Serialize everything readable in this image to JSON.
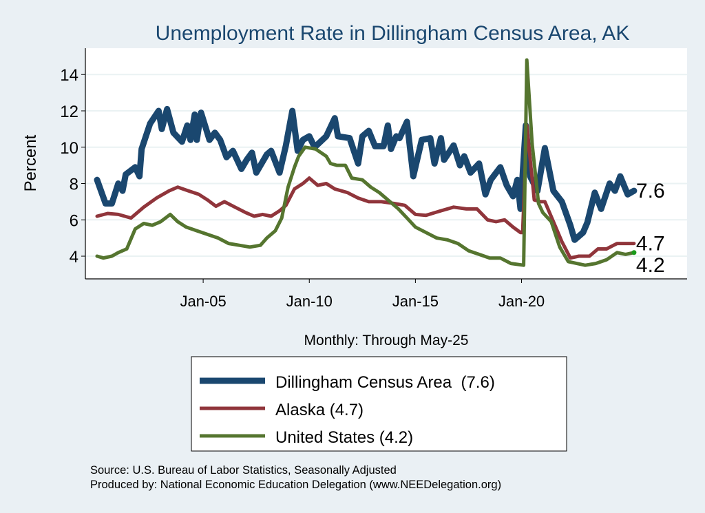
{
  "chart_data": {
    "type": "line",
    "title": "Unemployment Rate in Dillingham Census Area, AK",
    "xlabel": "Monthly: Through May-25",
    "ylabel": "Percent",
    "ylim": [
      2.75,
      15.45
    ],
    "xlim": [
      1999.45,
      2027.8
    ],
    "yticks": [
      4,
      6,
      8,
      10,
      12,
      14
    ],
    "ytick_labels": [
      "4",
      "6",
      "8",
      "10",
      "12",
      "14"
    ],
    "xticks": [
      2005,
      2010,
      2015,
      2020
    ],
    "xtick_labels": [
      "Jan-05",
      "Jan-10",
      "Jan-15",
      "Jan-20"
    ],
    "grid": true,
    "legend_position": "bottom",
    "series": [
      {
        "name": "Dillingham Census Area  (7.6)",
        "color": "#1a476f",
        "end_label": "7.6",
        "points": [
          [
            2000.0,
            8.2
          ],
          [
            2000.4,
            6.9
          ],
          [
            2000.7,
            6.9
          ],
          [
            2001.0,
            8.0
          ],
          [
            2001.2,
            7.6
          ],
          [
            2001.35,
            8.5
          ],
          [
            2001.8,
            8.9
          ],
          [
            2002.0,
            8.4
          ],
          [
            2002.1,
            9.9
          ],
          [
            2002.5,
            11.3
          ],
          [
            2002.9,
            12.0
          ],
          [
            2003.05,
            11.0
          ],
          [
            2003.3,
            12.1
          ],
          [
            2003.6,
            10.8
          ],
          [
            2004.0,
            10.3
          ],
          [
            2004.25,
            11.2
          ],
          [
            2004.4,
            10.4
          ],
          [
            2004.6,
            11.8
          ],
          [
            2004.7,
            10.4
          ],
          [
            2004.9,
            11.9
          ],
          [
            2005.3,
            10.4
          ],
          [
            2005.55,
            10.8
          ],
          [
            2005.8,
            10.4
          ],
          [
            2006.1,
            9.45
          ],
          [
            2006.4,
            9.8
          ],
          [
            2006.8,
            8.8
          ],
          [
            2007.05,
            9.3
          ],
          [
            2007.3,
            9.7
          ],
          [
            2007.5,
            8.6
          ],
          [
            2008.0,
            9.6
          ],
          [
            2008.2,
            9.8
          ],
          [
            2008.6,
            8.6
          ],
          [
            2008.9,
            10.1
          ],
          [
            2009.2,
            12.0
          ],
          [
            2009.45,
            9.8
          ],
          [
            2009.7,
            10.4
          ],
          [
            2010.0,
            10.6
          ],
          [
            2010.25,
            10.0
          ],
          [
            2010.8,
            10.6
          ],
          [
            2011.2,
            11.6
          ],
          [
            2011.35,
            10.6
          ],
          [
            2011.9,
            10.5
          ],
          [
            2012.3,
            9.1
          ],
          [
            2012.5,
            10.6
          ],
          [
            2012.8,
            10.9
          ],
          [
            2013.1,
            10.05
          ],
          [
            2013.5,
            10.05
          ],
          [
            2013.7,
            11.2
          ],
          [
            2013.85,
            9.9
          ],
          [
            2014.1,
            10.6
          ],
          [
            2014.25,
            10.5
          ],
          [
            2014.6,
            11.4
          ],
          [
            2014.9,
            8.4
          ],
          [
            2015.3,
            10.4
          ],
          [
            2015.7,
            10.5
          ],
          [
            2015.9,
            9.1
          ],
          [
            2016.2,
            10.5
          ],
          [
            2016.35,
            9.3
          ],
          [
            2016.8,
            10.1
          ],
          [
            2017.1,
            9.0
          ],
          [
            2017.3,
            9.5
          ],
          [
            2017.6,
            8.6
          ],
          [
            2018.0,
            9.1
          ],
          [
            2018.3,
            7.4
          ],
          [
            2018.55,
            8.2
          ],
          [
            2019.0,
            8.9
          ],
          [
            2019.3,
            7.9
          ],
          [
            2019.6,
            7.3
          ],
          [
            2019.8,
            8.2
          ],
          [
            2019.95,
            6.6
          ],
          [
            2020.2,
            11.2
          ],
          [
            2020.4,
            8.4
          ],
          [
            2020.75,
            7.6
          ],
          [
            2021.1,
            9.95
          ],
          [
            2021.5,
            7.6
          ],
          [
            2021.9,
            7.0
          ],
          [
            2022.3,
            5.7
          ],
          [
            2022.5,
            4.9
          ],
          [
            2022.9,
            5.3
          ],
          [
            2023.1,
            5.85
          ],
          [
            2023.45,
            7.5
          ],
          [
            2023.75,
            6.6
          ],
          [
            2024.15,
            8.0
          ],
          [
            2024.4,
            7.6
          ],
          [
            2024.65,
            8.4
          ],
          [
            2025.0,
            7.4
          ],
          [
            2025.3,
            7.6
          ]
        ]
      },
      {
        "name": "Alaska (4.7)",
        "color": "#90353b",
        "end_label": "4.7",
        "points": [
          [
            2000.0,
            6.2
          ],
          [
            2000.5,
            6.35
          ],
          [
            2001.0,
            6.3
          ],
          [
            2001.6,
            6.1
          ],
          [
            2002.2,
            6.7
          ],
          [
            2002.8,
            7.2
          ],
          [
            2003.4,
            7.6
          ],
          [
            2003.8,
            7.8
          ],
          [
            2004.3,
            7.6
          ],
          [
            2004.8,
            7.4
          ],
          [
            2005.2,
            7.1
          ],
          [
            2005.6,
            6.75
          ],
          [
            2006.0,
            7.0
          ],
          [
            2006.5,
            6.7
          ],
          [
            2007.0,
            6.4
          ],
          [
            2007.4,
            6.2
          ],
          [
            2007.8,
            6.3
          ],
          [
            2008.2,
            6.2
          ],
          [
            2008.6,
            6.5
          ],
          [
            2008.9,
            6.8
          ],
          [
            2009.3,
            7.7
          ],
          [
            2009.7,
            8.0
          ],
          [
            2010.0,
            8.3
          ],
          [
            2010.4,
            7.9
          ],
          [
            2010.8,
            8.0
          ],
          [
            2011.2,
            7.7
          ],
          [
            2011.8,
            7.5
          ],
          [
            2012.3,
            7.2
          ],
          [
            2012.8,
            7.0
          ],
          [
            2013.4,
            7.0
          ],
          [
            2014.0,
            6.9
          ],
          [
            2014.5,
            6.8
          ],
          [
            2015.0,
            6.3
          ],
          [
            2015.5,
            6.25
          ],
          [
            2016.2,
            6.5
          ],
          [
            2016.8,
            6.7
          ],
          [
            2017.4,
            6.6
          ],
          [
            2017.9,
            6.6
          ],
          [
            2018.4,
            6.0
          ],
          [
            2018.8,
            5.9
          ],
          [
            2019.2,
            6.0
          ],
          [
            2019.6,
            5.6
          ],
          [
            2019.95,
            5.3
          ],
          [
            2020.05,
            5.3
          ],
          [
            2020.25,
            11.2
          ],
          [
            2020.6,
            7.1
          ],
          [
            2020.9,
            7.0
          ],
          [
            2021.1,
            7.0
          ],
          [
            2021.5,
            5.9
          ],
          [
            2021.9,
            4.8
          ],
          [
            2022.3,
            3.9
          ],
          [
            2022.7,
            4.0
          ],
          [
            2023.2,
            4.0
          ],
          [
            2023.6,
            4.4
          ],
          [
            2024.0,
            4.4
          ],
          [
            2024.5,
            4.7
          ],
          [
            2025.0,
            4.7
          ],
          [
            2025.3,
            4.7
          ]
        ]
      },
      {
        "name": "United States (4.2)",
        "color": "#55752f",
        "end_label": "4.2",
        "points": [
          [
            2000.0,
            4.0
          ],
          [
            2000.3,
            3.9
          ],
          [
            2000.7,
            4.0
          ],
          [
            2001.0,
            4.2
          ],
          [
            2001.4,
            4.4
          ],
          [
            2001.8,
            5.5
          ],
          [
            2002.2,
            5.8
          ],
          [
            2002.6,
            5.7
          ],
          [
            2003.0,
            5.9
          ],
          [
            2003.45,
            6.3
          ],
          [
            2003.8,
            5.9
          ],
          [
            2004.2,
            5.6
          ],
          [
            2004.7,
            5.4
          ],
          [
            2005.2,
            5.2
          ],
          [
            2005.7,
            5.0
          ],
          [
            2006.2,
            4.7
          ],
          [
            2006.7,
            4.6
          ],
          [
            2007.2,
            4.5
          ],
          [
            2007.7,
            4.6
          ],
          [
            2008.0,
            5.0
          ],
          [
            2008.4,
            5.4
          ],
          [
            2008.7,
            6.1
          ],
          [
            2009.0,
            7.8
          ],
          [
            2009.3,
            8.9
          ],
          [
            2009.5,
            9.5
          ],
          [
            2009.8,
            10.0
          ],
          [
            2010.3,
            9.9
          ],
          [
            2010.8,
            9.5
          ],
          [
            2011.0,
            9.1
          ],
          [
            2011.3,
            9.0
          ],
          [
            2011.7,
            9.0
          ],
          [
            2012.0,
            8.3
          ],
          [
            2012.5,
            8.2
          ],
          [
            2012.9,
            7.8
          ],
          [
            2013.3,
            7.5
          ],
          [
            2013.8,
            7.0
          ],
          [
            2014.2,
            6.6
          ],
          [
            2014.6,
            6.1
          ],
          [
            2015.0,
            5.6
          ],
          [
            2015.5,
            5.3
          ],
          [
            2016.0,
            5.0
          ],
          [
            2016.5,
            4.9
          ],
          [
            2017.0,
            4.7
          ],
          [
            2017.5,
            4.3
          ],
          [
            2018.0,
            4.1
          ],
          [
            2018.5,
            3.9
          ],
          [
            2019.0,
            3.9
          ],
          [
            2019.5,
            3.6
          ],
          [
            2020.1,
            3.5
          ],
          [
            2020.25,
            14.8
          ],
          [
            2020.5,
            10.2
          ],
          [
            2020.8,
            6.9
          ],
          [
            2021.0,
            6.4
          ],
          [
            2021.4,
            5.9
          ],
          [
            2021.8,
            4.5
          ],
          [
            2022.2,
            3.7
          ],
          [
            2022.6,
            3.6
          ],
          [
            2023.0,
            3.5
          ],
          [
            2023.5,
            3.6
          ],
          [
            2024.0,
            3.8
          ],
          [
            2024.5,
            4.2
          ],
          [
            2024.9,
            4.1
          ],
          [
            2025.3,
            4.2
          ]
        ]
      }
    ],
    "source_lines": [
      "Source: U.S. Bureau of Labor Statistics, Seasonally Adjusted",
      "Produced by: National Economic Education Delegation (www.NEEDelegation.org)"
    ]
  }
}
